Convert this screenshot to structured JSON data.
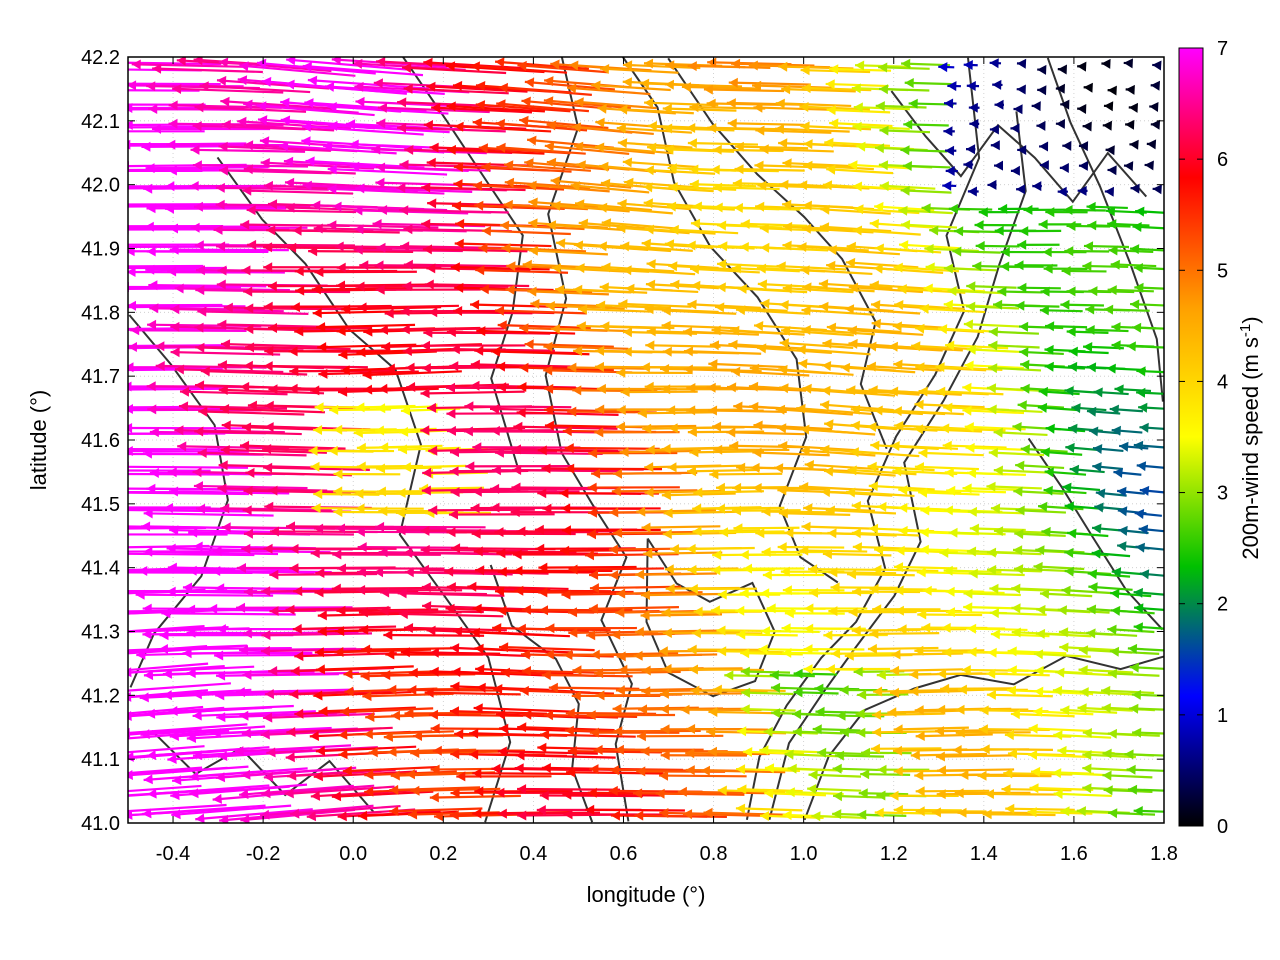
{
  "chart_data": {
    "type": "quiver",
    "xlabel": "longitude (°)",
    "ylabel": "latitude (°)",
    "xlim": [
      -0.5,
      1.8
    ],
    "ylim": [
      41.0,
      42.2
    ],
    "x_ticks": [
      "-0.4",
      "-0.2",
      "0.0",
      "0.2",
      "0.4",
      "0.6",
      "0.8",
      "1.0",
      "1.2",
      "1.4",
      "1.6",
      "1.8"
    ],
    "x_tick_values": [
      -0.4,
      -0.2,
      0.0,
      0.2,
      0.4,
      0.6,
      0.8,
      1.0,
      1.2,
      1.4,
      1.6,
      1.8
    ],
    "y_ticks": [
      "41.0",
      "41.1",
      "41.2",
      "41.3",
      "41.4",
      "41.5",
      "41.6",
      "41.7",
      "41.8",
      "41.9",
      "42.0",
      "42.1",
      "42.2"
    ],
    "y_tick_values": [
      41.0,
      41.1,
      41.2,
      41.3,
      41.4,
      41.5,
      41.6,
      41.7,
      41.8,
      41.9,
      42.0,
      42.1,
      42.2
    ],
    "grid": true,
    "colorbar": {
      "label_main": "200m-wind speed (m s",
      "label_sup": "-1",
      "label_end": ")",
      "range": [
        0,
        7
      ],
      "ticks": [
        "0",
        "1",
        "2",
        "3",
        "4",
        "5",
        "6",
        "7"
      ],
      "tick_values": [
        0,
        1,
        2,
        3,
        4,
        5,
        6,
        7
      ],
      "stops": [
        "#000000",
        "#0000ff",
        "#00c000",
        "#ffff00",
        "#ffa000",
        "#ff0000",
        "#ff00ff"
      ]
    },
    "wind_direction": "westward (easterly flow), slightly southward in west",
    "speed_regions_note": "west ~7 m/s, center ~5 m/s, east ~2-3 m/s",
    "contour_color": "#333333"
  }
}
